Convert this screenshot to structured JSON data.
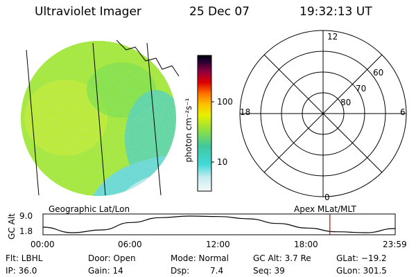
{
  "header": {
    "title": "Ultraviolet Imager",
    "date": "25 Dec 07",
    "time": "19:32:13 UT"
  },
  "colorbar": {
    "unit_label": "photon cm⁻²s⁻¹",
    "ticks": [
      "100",
      "10"
    ],
    "scale": "log"
  },
  "polar_plot": {
    "mlt_labels": {
      "top": "12",
      "left": "18",
      "right": "6",
      "bottom": "0"
    },
    "lat_labels": [
      "60",
      "70",
      "80"
    ]
  },
  "altitude_plot": {
    "left_label": "Geographic Lat/Lon",
    "right_label": "Apex MLat/MLT",
    "y_axis_label": "GC Alt",
    "y_ticks": [
      "9.0",
      "1.8"
    ],
    "x_ticks": [
      "00:00",
      "06:00",
      "12:00",
      "18:00",
      "23:59"
    ],
    "marker_color": "#cc0000"
  },
  "chart_data": {
    "type": "line",
    "title": "",
    "xlabel": "",
    "ylabel": "GC Alt",
    "x": [
      "00:00",
      "02:00",
      "04:00",
      "06:00",
      "08:00",
      "10:00",
      "12:00",
      "14:00",
      "16:00",
      "18:00",
      "20:00",
      "22:00",
      "23:59"
    ],
    "series": [
      {
        "values": [
          4.2,
          1.8,
          3.0,
          6.2,
          8.3,
          9.0,
          8.8,
          7.8,
          5.8,
          3.8,
          2.2,
          1.8,
          3.6
        ]
      }
    ],
    "ylim": [
      1.8,
      9.0
    ],
    "current_time": "19:32:13",
    "current_altitude_re": 3.7
  },
  "status": {
    "filter": "Flt: LBHL",
    "ip": "IP: 36.0",
    "door": "Door: Open",
    "gain": "Gain: 14",
    "mode": "Mode: Normal",
    "dsp": "Dsp:",
    "dsp_value": "7.4",
    "gc_alt": "GC Alt: 3.7 Re",
    "seq": "Seq: 39",
    "glat": "GLat: −19.2",
    "glon": "GLon: 301.5"
  }
}
